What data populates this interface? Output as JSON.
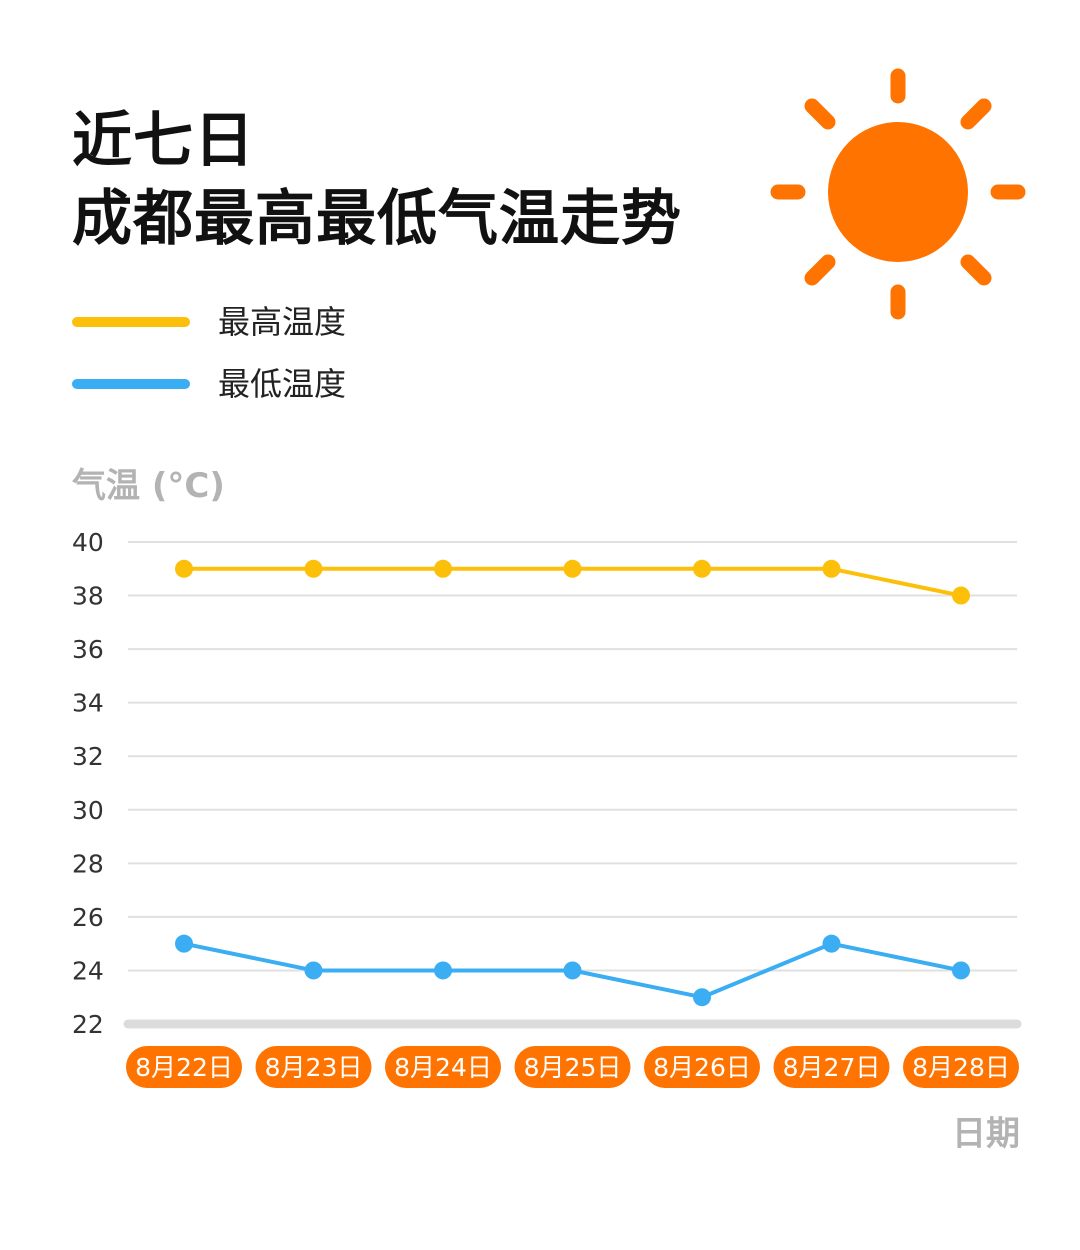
{
  "title": {
    "line1": "近七日",
    "line2": "成都最高最低气温走势"
  },
  "colors": {
    "frame": "#ff7300",
    "high": "#fcbf0a",
    "low": "#3aadf3",
    "date_badge": "#ff7300",
    "gridline": "#e0e0e0",
    "baseline": "#dcdcdc"
  },
  "icons": {
    "decoration": "sun-icon"
  },
  "chart_data": {
    "type": "line",
    "categories": [
      "8月22日",
      "8月23日",
      "8月24日",
      "8月25日",
      "8月26日",
      "8月27日",
      "8月28日"
    ],
    "series": [
      {
        "name": "最高温度",
        "values": [
          39,
          39,
          39,
          39,
          39,
          39,
          38
        ]
      },
      {
        "name": "最低温度",
        "values": [
          25,
          24,
          24,
          24,
          23,
          25,
          24
        ]
      }
    ],
    "ylabel": "气温 (°C)",
    "xlabel": "日期",
    "ylim": [
      22,
      40
    ],
    "yticks": [
      22,
      24,
      26,
      28,
      30,
      32,
      34,
      36,
      38,
      40
    ],
    "grid": true,
    "legend_position": "top-left"
  }
}
